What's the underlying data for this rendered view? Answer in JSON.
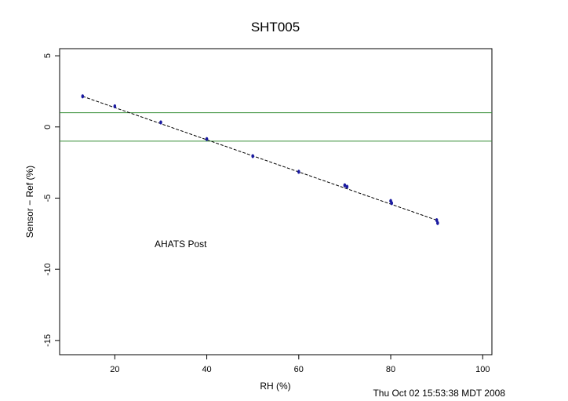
{
  "chart_data": {
    "type": "scatter",
    "title": "SHT005",
    "xlabel": "RH (%)",
    "ylabel": "Sensor − Ref (%)",
    "xlim": [
      8,
      102
    ],
    "ylim": [
      -16,
      5.5
    ],
    "xticks": [
      20,
      40,
      60,
      80,
      100
    ],
    "yticks": [
      5,
      0,
      -5,
      -10,
      -15
    ],
    "grid": false,
    "annotation": "AHATS Post",
    "footer": "Thu Oct 02 15:53:38 MDT 2008",
    "reference_lines": [
      1,
      -1
    ],
    "reference_line_color": "#3a8f3a",
    "point_color": "#1a1aa0",
    "fit_line": {
      "x1": 13,
      "y1": 2.15,
      "x2": 90,
      "y2": -6.55,
      "style": "dashed",
      "color": "#000000"
    },
    "points": [
      [
        13,
        2.15
      ],
      [
        20,
        1.45
      ],
      [
        30,
        0.32
      ],
      [
        40,
        -0.85
      ],
      [
        50,
        -2.05
      ],
      [
        60,
        -3.15
      ],
      [
        70,
        -4.1
      ],
      [
        70.5,
        -4.2
      ],
      [
        80,
        -5.2
      ],
      [
        80.2,
        -5.35
      ],
      [
        90,
        -6.55
      ],
      [
        90.2,
        -6.75
      ]
    ]
  }
}
